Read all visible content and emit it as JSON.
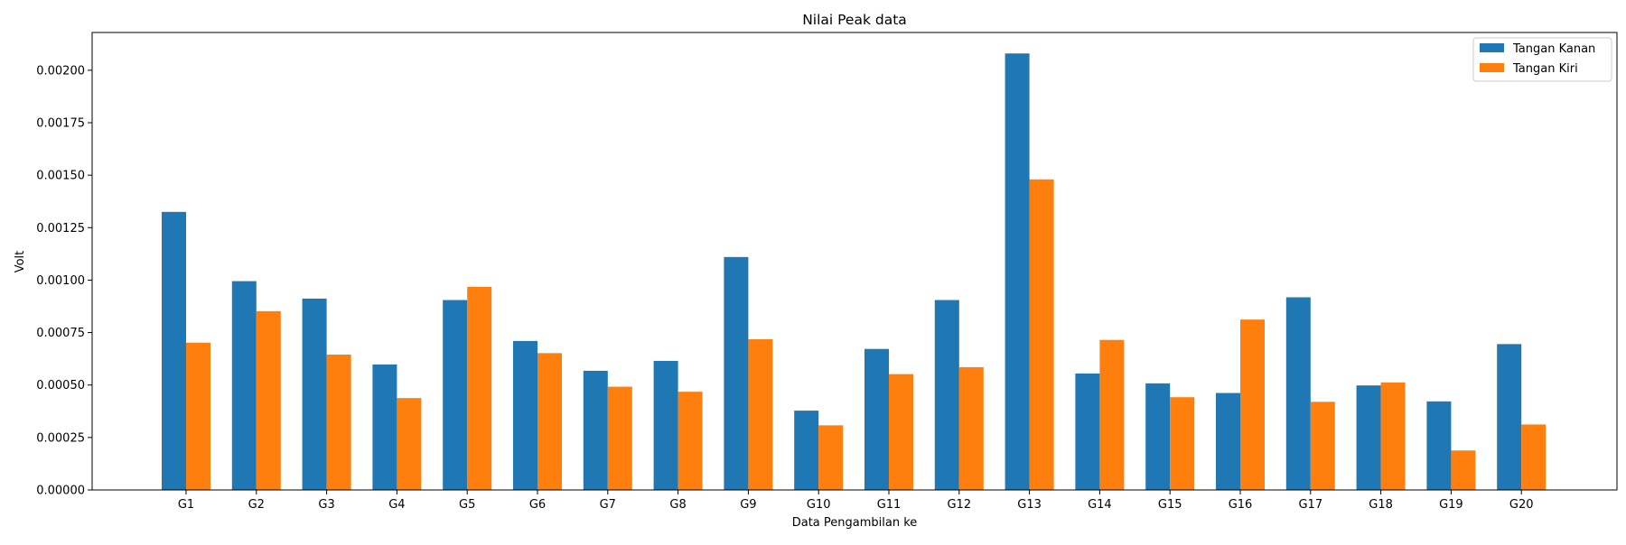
{
  "chart_data": {
    "type": "bar",
    "title": "Nilai Peak data",
    "xlabel": "Data Pengambilan ke",
    "ylabel": "Volt",
    "categories": [
      "G1",
      "G2",
      "G3",
      "G4",
      "G5",
      "G6",
      "G7",
      "G8",
      "G9",
      "G10",
      "G11",
      "G12",
      "G13",
      "G14",
      "G15",
      "G16",
      "G17",
      "G18",
      "G19",
      "G20"
    ],
    "series": [
      {
        "name": "Tangan Kanan",
        "color": "#1f77b4",
        "values": [
          0.001325,
          0.000995,
          0.000912,
          0.000598,
          0.000905,
          0.00071,
          0.000568,
          0.000615,
          0.00111,
          0.000378,
          0.000672,
          0.000905,
          0.00208,
          0.000555,
          0.000508,
          0.000462,
          0.000918,
          0.000498,
          0.000422,
          0.000695
        ]
      },
      {
        "name": "Tangan Kiri",
        "color": "#ff7f0e",
        "values": [
          0.000702,
          0.000852,
          0.000645,
          0.000438,
          0.000968,
          0.000652,
          0.000492,
          0.000468,
          0.000718,
          0.000308,
          0.000552,
          0.000585,
          0.00148,
          0.000715,
          0.000442,
          0.000812,
          0.00042,
          0.000512,
          0.000188,
          0.000312
        ]
      }
    ],
    "ylim": [
      0,
      0.00218
    ],
    "yticks": [
      "0.00000",
      "0.00025",
      "0.00050",
      "0.00075",
      "0.00100",
      "0.00125",
      "0.00150",
      "0.00175",
      "0.00200"
    ],
    "legend_position": "top-right",
    "grid": false
  }
}
